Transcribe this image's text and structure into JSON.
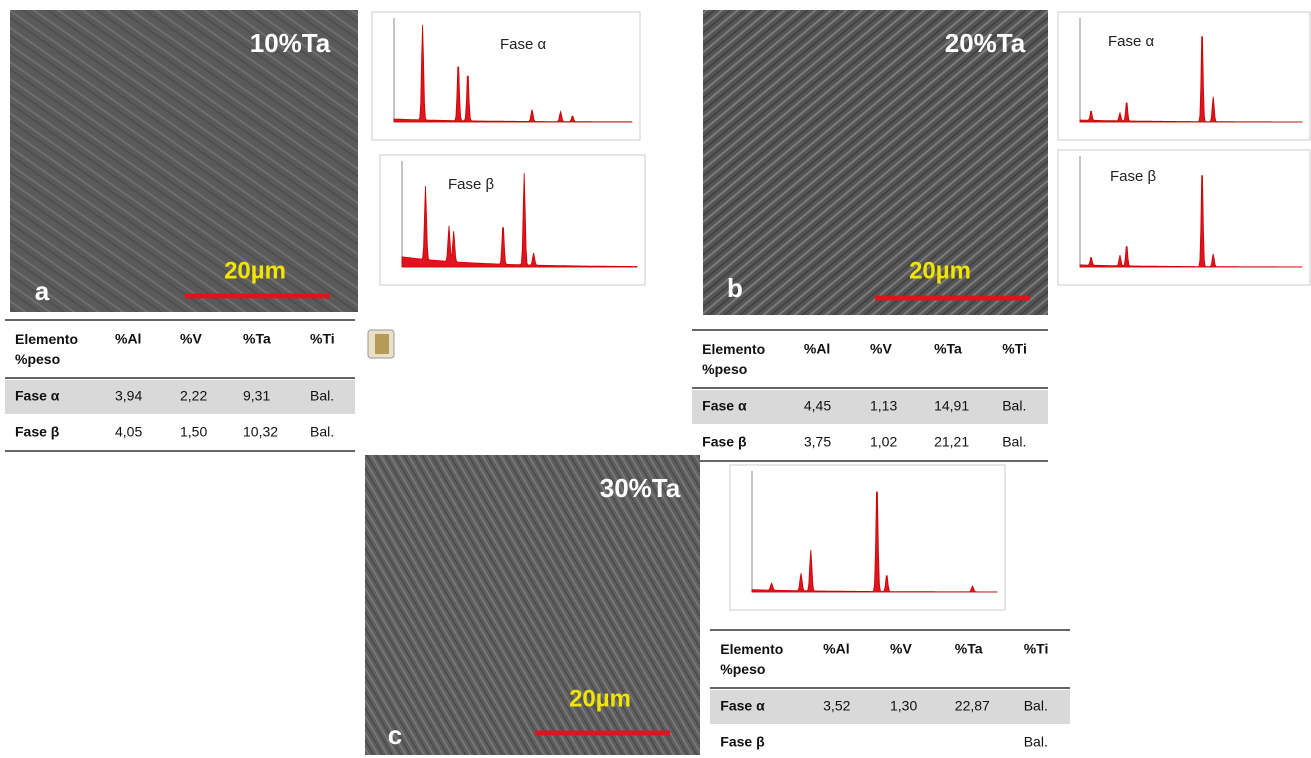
{
  "panels": [
    {
      "label": "a",
      "composition": "10%Ta",
      "scale": "20µm",
      "spectra": [
        "Fase α",
        "Fase β"
      ],
      "table": {
        "header": [
          "Elemento %peso",
          "%Al",
          "%V",
          "%Ta",
          "%Ti"
        ],
        "rows": [
          [
            "Fase α",
            "3,94",
            "2,22",
            "9,31",
            "Bal."
          ],
          [
            "Fase β",
            "4,05",
            "1,50",
            "10,32",
            "Bal."
          ]
        ]
      }
    },
    {
      "label": "b",
      "composition": "20%Ta",
      "scale": "20µm",
      "spectra": [
        "Fase α",
        "Fase β"
      ],
      "table": {
        "header": [
          "Elemento %peso",
          "%Al",
          "%V",
          "%Ta",
          "%Ti"
        ],
        "rows": [
          [
            "Fase α",
            "4,45",
            "1,13",
            "14,91",
            "Bal."
          ],
          [
            "Fase β",
            "3,75",
            "1,02",
            "21,21",
            "Bal."
          ]
        ]
      }
    },
    {
      "label": "c",
      "composition": "30%Ta",
      "scale": "20µm",
      "spectra": [
        null
      ],
      "table": {
        "header": [
          "Elemento %peso",
          "%Al",
          "%V",
          "%Ta",
          "%Ti"
        ],
        "rows": [
          [
            "Fase α",
            "3,52",
            "1,30",
            "22,87",
            "Bal."
          ],
          [
            "Fase β",
            null,
            null,
            null,
            "Bal."
          ]
        ]
      }
    }
  ]
}
